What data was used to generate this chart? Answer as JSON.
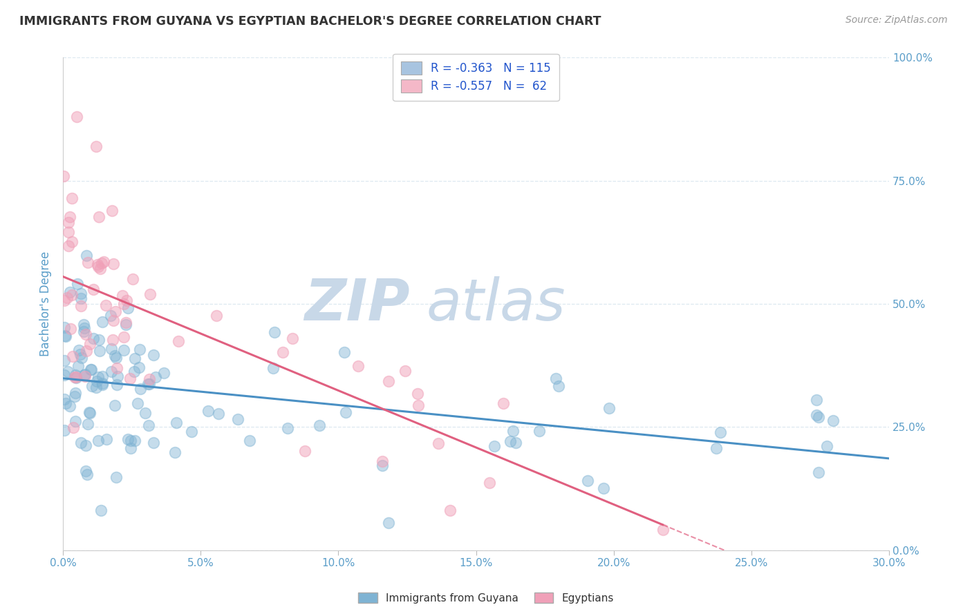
{
  "title": "IMMIGRANTS FROM GUYANA VS EGYPTIAN BACHELOR'S DEGREE CORRELATION CHART",
  "source_text": "Source: ZipAtlas.com",
  "ylabel": "Bachelor's Degree",
  "x_min": 0.0,
  "x_max": 0.3,
  "y_min": 0.0,
  "y_max": 1.0,
  "x_tick_labels": [
    "0.0%",
    "5.0%",
    "10.0%",
    "15.0%",
    "20.0%",
    "25.0%",
    "30.0%"
  ],
  "x_tick_vals": [
    0.0,
    0.05,
    0.1,
    0.15,
    0.2,
    0.25,
    0.3
  ],
  "y_tick_labels_right": [
    "0.0%",
    "25.0%",
    "50.0%",
    "75.0%",
    "100.0%"
  ],
  "y_tick_vals_right": [
    0.0,
    0.25,
    0.5,
    0.75,
    1.0
  ],
  "legend_line1": "R = -0.363   N = 115",
  "legend_line2": "R = -0.557   N =  62",
  "legend_color1": "#a8c4e0",
  "legend_color2": "#f4b8c8",
  "blue_scatter_color": "#7fb3d3",
  "pink_scatter_color": "#f0a0b8",
  "blue_line_color": "#4a90c4",
  "pink_line_color": "#e06080",
  "watermark": "ZIPatlas",
  "watermark_color": "#c8d8e8",
  "background_color": "#ffffff",
  "grid_color": "#dde8f0",
  "title_color": "#333333",
  "source_color": "#999999",
  "tick_label_color": "#5b9ec9",
  "ylabel_color": "#5b9ec9",
  "bottom_legend_color": "#333333",
  "blue_line_intercept": 0.365,
  "blue_line_slope": -0.52,
  "pink_line_intercept": 0.525,
  "pink_line_slope": -1.65
}
